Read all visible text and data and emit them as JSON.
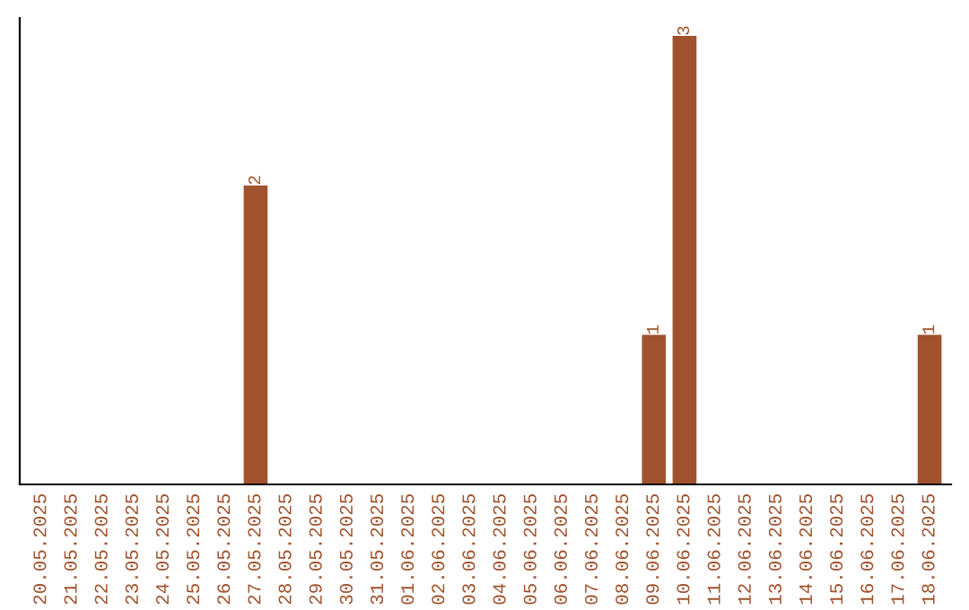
{
  "chart_data": {
    "type": "bar",
    "categories": [
      "20.05.2025",
      "21.05.2025",
      "22.05.2025",
      "23.05.2025",
      "24.05.2025",
      "25.05.2025",
      "26.05.2025",
      "27.05.2025",
      "28.05.2025",
      "29.05.2025",
      "30.05.2025",
      "31.05.2025",
      "01.06.2025",
      "02.06.2025",
      "03.06.2025",
      "04.06.2025",
      "05.06.2025",
      "06.06.2025",
      "07.06.2025",
      "08.06.2025",
      "09.06.2025",
      "10.06.2025",
      "11.06.2025",
      "12.06.2025",
      "13.06.2025",
      "14.06.2025",
      "15.06.2025",
      "16.06.2025",
      "17.06.2025",
      "18.06.2025"
    ],
    "values": [
      0,
      0,
      0,
      0,
      0,
      0,
      0,
      2,
      0,
      0,
      0,
      0,
      0,
      0,
      0,
      0,
      0,
      0,
      0,
      0,
      1,
      3,
      0,
      0,
      0,
      0,
      0,
      0,
      0,
      1
    ],
    "value_labels": [
      null,
      null,
      null,
      null,
      null,
      null,
      null,
      "2",
      null,
      null,
      null,
      null,
      null,
      null,
      null,
      null,
      null,
      null,
      null,
      null,
      "1",
      "3",
      null,
      null,
      null,
      null,
      null,
      null,
      null,
      "1"
    ],
    "color": "#a0522d",
    "grid": false,
    "legend": false
  }
}
